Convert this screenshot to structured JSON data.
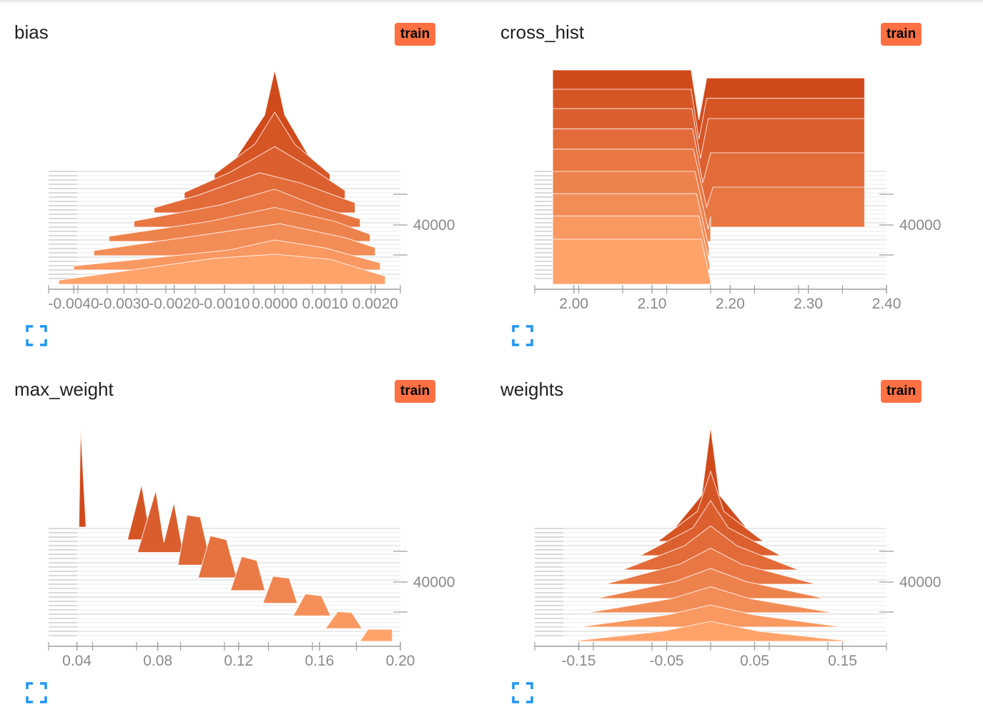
{
  "colors": {
    "accent": "#ff7043",
    "dark_orange": "#d04a1b",
    "light_orange": "#ffa36b",
    "axis": "#9e9e9e",
    "tick_text": "#8a8a8a"
  },
  "icons": {
    "expand": "fullscreen-corners-icon"
  },
  "cards": [
    {
      "title": "bias",
      "badge": "train",
      "chart_data": {
        "type": "histogram-offset",
        "run": "train",
        "xlim": [
          -0.0045,
          0.0025
        ],
        "x_ticks": [
          -0.004,
          -0.003,
          -0.002,
          -0.001,
          0.0,
          0.001,
          0.002
        ],
        "x_tick_labels": [
          "-0.0040",
          "-0.0030",
          "-0.0020",
          "-0.0010",
          "0.0000",
          "0.0010",
          "0.0020"
        ],
        "y_tick_labels": [
          "40000"
        ],
        "series": [
          {
            "points": [
              [
                -0.0008,
                0.1
              ],
              [
                -0.0002,
                0.55
              ],
              [
                0.0,
                1.0
              ],
              [
                0.0002,
                0.55
              ],
              [
                0.0007,
                0.12
              ]
            ]
          },
          {
            "points": [
              [
                -0.0012,
                0.1
              ],
              [
                -0.0004,
                0.4
              ],
              [
                0.0,
                0.72
              ],
              [
                0.0004,
                0.4
              ],
              [
                0.0011,
                0.1
              ]
            ]
          },
          {
            "points": [
              [
                -0.0018,
                0.06
              ],
              [
                -0.0009,
                0.26
              ],
              [
                0.0,
                0.52
              ],
              [
                0.0008,
                0.28
              ],
              [
                0.0014,
                0.08
              ]
            ]
          },
          {
            "points": [
              [
                -0.0024,
                0.05
              ],
              [
                -0.0015,
                0.18
              ],
              [
                -0.0003,
                0.4
              ],
              [
                0.0005,
                0.3
              ],
              [
                0.0016,
                0.1
              ]
            ]
          },
          {
            "points": [
              [
                -0.0028,
                0.06
              ],
              [
                -0.0011,
                0.22
              ],
              [
                0.0,
                0.38
              ],
              [
                0.0009,
                0.2
              ],
              [
                0.0017,
                0.08
              ]
            ]
          },
          {
            "points": [
              [
                -0.0033,
                0.05
              ],
              [
                -0.0013,
                0.2
              ],
              [
                0.0,
                0.34
              ],
              [
                0.0012,
                0.2
              ],
              [
                0.0019,
                0.07
              ]
            ]
          },
          {
            "points": [
              [
                -0.0036,
                0.05
              ],
              [
                -0.001,
                0.24
              ],
              [
                0.0001,
                0.32
              ],
              [
                0.0014,
                0.18
              ],
              [
                0.002,
                0.08
              ]
            ]
          },
          {
            "points": [
              [
                -0.004,
                0.04
              ],
              [
                -0.0009,
                0.2
              ],
              [
                0.0,
                0.3
              ],
              [
                0.001,
                0.22
              ],
              [
                0.0021,
                0.07
              ]
            ]
          },
          {
            "points": [
              [
                -0.0043,
                0.04
              ],
              [
                -0.0012,
                0.26
              ],
              [
                0.0,
                0.3
              ],
              [
                0.0011,
                0.25
              ],
              [
                0.0022,
                0.08
              ]
            ]
          }
        ]
      }
    },
    {
      "title": "cross_hist",
      "badge": "train",
      "chart_data": {
        "type": "histogram-offset",
        "run": "train",
        "xlim": [
          1.95,
          2.4
        ],
        "x_ticks": [
          2.0,
          2.1,
          2.2,
          2.3,
          2.4
        ],
        "x_tick_labels": [
          "2.00",
          "2.10",
          "2.20",
          "2.30",
          "2.40"
        ],
        "y_tick_labels": [
          "40000"
        ],
        "series": [
          {
            "points": [
              [
                1.973,
                1.0
              ],
              [
                2.15,
                1.0
              ],
              [
                2.16,
                0.5
              ],
              [
                2.17,
                0.92
              ],
              [
                2.372,
                0.92
              ],
              [
                2.372,
                0.28
              ]
            ]
          },
          {
            "points": [
              [
                1.973,
                0.95
              ],
              [
                2.15,
                0.95
              ],
              [
                2.16,
                0.45
              ],
              [
                2.17,
                0.86
              ],
              [
                2.372,
                0.86
              ],
              [
                2.372,
                0.26
              ]
            ]
          },
          {
            "points": [
              [
                1.973,
                0.9
              ],
              [
                2.151,
                0.9
              ],
              [
                2.162,
                0.4
              ],
              [
                2.172,
                0.8
              ],
              [
                2.372,
                0.8
              ],
              [
                2.372,
                0.24
              ]
            ]
          },
          {
            "points": [
              [
                1.973,
                0.84
              ],
              [
                2.152,
                0.84
              ],
              [
                2.165,
                0.3
              ],
              [
                2.175,
                0.6
              ],
              [
                2.372,
                0.6
              ],
              [
                2.372,
                0.22
              ]
            ]
          },
          {
            "points": [
              [
                1.973,
                0.78
              ],
              [
                2.153,
                0.78
              ],
              [
                2.17,
                0.2
              ],
              [
                2.178,
                0.4
              ],
              [
                2.372,
                0.4
              ],
              [
                2.372,
                0.2
              ]
            ]
          },
          {
            "points": [
              [
                1.973,
                0.7
              ],
              [
                2.155,
                0.7
              ],
              [
                2.172,
                0.12
              ],
              [
                2.175,
                0.25
              ]
            ]
          },
          {
            "points": [
              [
                1.973,
                0.62
              ],
              [
                2.157,
                0.62
              ],
              [
                2.173,
                0.08
              ]
            ]
          },
          {
            "points": [
              [
                1.973,
                0.54
              ],
              [
                2.16,
                0.54
              ],
              [
                2.174,
                0.05
              ]
            ]
          },
          {
            "points": [
              [
                1.973,
                0.45
              ],
              [
                2.163,
                0.45
              ],
              [
                2.175,
                0.03
              ]
            ]
          }
        ]
      }
    },
    {
      "title": "max_weight",
      "badge": "train",
      "chart_data": {
        "type": "histogram-offset",
        "run": "train",
        "xlim": [
          0.026,
          0.2
        ],
        "x_ticks": [
          0.04,
          0.08,
          0.12,
          0.16,
          0.2
        ],
        "x_tick_labels": [
          "0.04",
          "0.08",
          "0.12",
          "0.16",
          "0.20"
        ],
        "y_tick_labels": [
          "40000"
        ],
        "series": [
          {
            "points": [
              [
                0.041,
                0.0
              ],
              [
                0.0418,
                1.0
              ],
              [
                0.0445,
                0.0
              ]
            ]
          },
          {
            "points": [
              [
                0.065,
                0.0
              ],
              [
                0.072,
                0.55
              ],
              [
                0.0765,
                0.0
              ]
            ]
          },
          {
            "points": [
              [
                0.07,
                0.0
              ],
              [
                0.079,
                0.62
              ],
              [
                0.083,
                0.1
              ],
              [
                0.088,
                0.5
              ],
              [
                0.0925,
                0.0
              ]
            ]
          },
          {
            "points": [
              [
                0.09,
                0.0
              ],
              [
                0.0945,
                0.5
              ],
              [
                0.101,
                0.48
              ],
              [
                0.1065,
                0.0
              ]
            ]
          },
          {
            "points": [
              [
                0.1,
                0.0
              ],
              [
                0.106,
                0.42
              ],
              [
                0.114,
                0.38
              ],
              [
                0.119,
                0.0
              ]
            ]
          },
          {
            "points": [
              [
                0.116,
                0.0
              ],
              [
                0.1215,
                0.34
              ],
              [
                0.129,
                0.3
              ],
              [
                0.133,
                0.0
              ]
            ]
          },
          {
            "points": [
              [
                0.132,
                0.0
              ],
              [
                0.137,
                0.27
              ],
              [
                0.145,
                0.25
              ],
              [
                0.149,
                0.0
              ]
            ]
          },
          {
            "points": [
              [
                0.147,
                0.0
              ],
              [
                0.153,
                0.22
              ],
              [
                0.161,
                0.2
              ],
              [
                0.1655,
                0.0
              ]
            ]
          },
          {
            "points": [
              [
                0.163,
                0.0
              ],
              [
                0.169,
                0.17
              ],
              [
                0.176,
                0.16
              ],
              [
                0.181,
                0.0
              ]
            ]
          },
          {
            "points": [
              [
                0.18,
                0.0
              ],
              [
                0.184,
                0.12
              ],
              [
                0.196,
                0.12
              ],
              [
                0.196,
                0.0
              ]
            ]
          }
        ]
      }
    },
    {
      "title": "weights",
      "badge": "train",
      "chart_data": {
        "type": "histogram-offset",
        "run": "train",
        "xlim": [
          -0.2,
          0.2
        ],
        "x_ticks": [
          -0.15,
          -0.05,
          0.05,
          0.15
        ],
        "x_tick_labels": [
          "-0.15",
          "-0.05",
          "0.05",
          "0.15"
        ],
        "y_tick_labels": [
          "40000"
        ],
        "series": [
          {
            "points": [
              [
                -0.04,
                0.0
              ],
              [
                -0.01,
                0.32
              ],
              [
                0.0,
                1.0
              ],
              [
                0.01,
                0.32
              ],
              [
                0.04,
                0.0
              ]
            ]
          },
          {
            "points": [
              [
                -0.06,
                0.0
              ],
              [
                -0.015,
                0.3
              ],
              [
                0.0,
                0.7
              ],
              [
                0.015,
                0.3
              ],
              [
                0.06,
                0.0
              ]
            ]
          },
          {
            "points": [
              [
                -0.08,
                0.0
              ],
              [
                -0.02,
                0.28
              ],
              [
                0.0,
                0.55
              ],
              [
                0.02,
                0.28
              ],
              [
                0.08,
                0.0
              ]
            ]
          },
          {
            "points": [
              [
                -0.1,
                0.0
              ],
              [
                -0.03,
                0.24
              ],
              [
                0.0,
                0.44
              ],
              [
                0.03,
                0.24
              ],
              [
                0.1,
                0.0
              ]
            ]
          },
          {
            "points": [
              [
                -0.12,
                0.0
              ],
              [
                -0.035,
                0.2
              ],
              [
                0.0,
                0.36
              ],
              [
                0.035,
                0.2
              ],
              [
                0.12,
                0.0
              ]
            ]
          },
          {
            "points": [
              [
                -0.13,
                0.0
              ],
              [
                -0.04,
                0.17
              ],
              [
                0.0,
                0.3
              ],
              [
                0.04,
                0.17
              ],
              [
                0.13,
                0.0
              ]
            ]
          },
          {
            "points": [
              [
                -0.14,
                0.0
              ],
              [
                -0.045,
                0.14
              ],
              [
                0.0,
                0.26
              ],
              [
                0.045,
                0.14
              ],
              [
                0.14,
                0.0
              ]
            ]
          },
          {
            "points": [
              [
                -0.15,
                0.0
              ],
              [
                -0.05,
                0.12
              ],
              [
                0.0,
                0.22
              ],
              [
                0.05,
                0.12
              ],
              [
                0.15,
                0.0
              ]
            ]
          },
          {
            "points": [
              [
                -0.16,
                0.0
              ],
              [
                -0.055,
                0.1
              ],
              [
                0.0,
                0.2
              ],
              [
                0.055,
                0.1
              ],
              [
                0.16,
                0.0
              ]
            ]
          }
        ]
      }
    }
  ]
}
